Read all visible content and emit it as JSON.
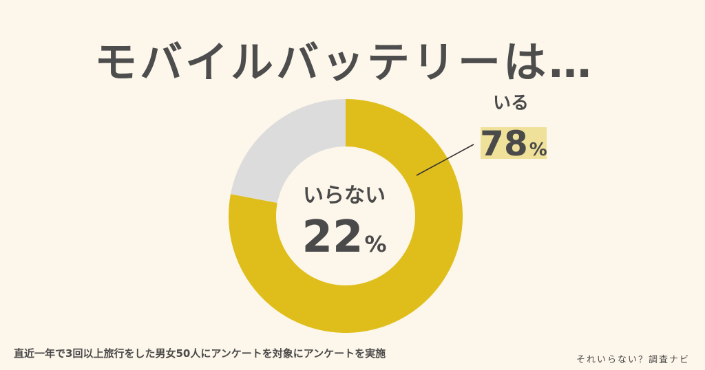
{
  "title": "モバイルバッテリーは…",
  "chart_data": {
    "type": "pie",
    "style": "donut",
    "slices": [
      {
        "label": "いる",
        "value": 78,
        "display": "78",
        "unit": "%",
        "color": "#dfbe1c"
      },
      {
        "label": "いらない",
        "value": 22,
        "display": "22",
        "unit": "%",
        "color": "#dcdcdc"
      }
    ],
    "highlight_color": "#efe09a",
    "center_color": "#fdf6ea"
  },
  "footnote": "直近一年で3回以上旅行をした男女50人にアンケートを対象にアンケートを実施",
  "brand": "それいらない？調査ナビ"
}
